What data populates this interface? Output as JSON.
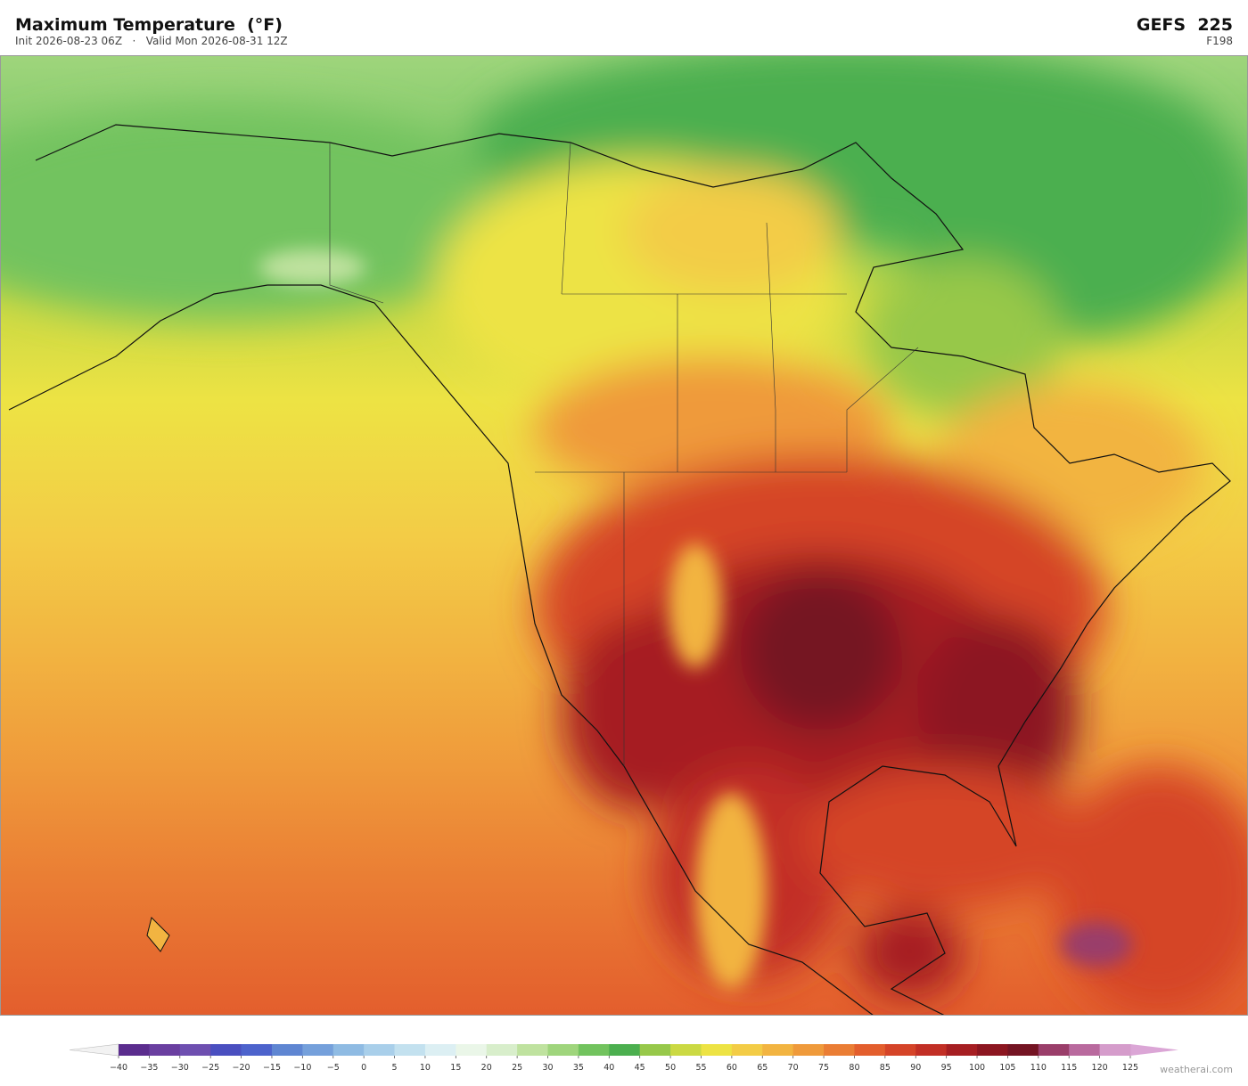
{
  "header": {
    "title": "Maximum Temperature  (°F)",
    "subtitle": "Init 2026-08-23 06Z   ·   Valid Mon 2026-08-31 12Z",
    "model": "GEFS  225",
    "forecast_hour": "F198"
  },
  "colorbar": {
    "ticks": [
      {
        "value": -40,
        "label": "−40"
      },
      {
        "value": -35,
        "label": "−35"
      },
      {
        "value": -30,
        "label": "−30"
      },
      {
        "value": -25,
        "label": "−25"
      },
      {
        "value": -20,
        "label": "−20"
      },
      {
        "value": -15,
        "label": "−15"
      },
      {
        "value": -10,
        "label": "−10"
      },
      {
        "value": -5,
        "label": "−5"
      },
      0,
      5,
      10,
      15,
      20,
      25,
      30,
      35,
      40,
      45,
      50,
      55,
      60,
      65,
      70,
      75,
      80,
      85,
      90,
      95,
      100,
      105,
      110,
      115,
      120,
      125
    ],
    "colors": [
      "#5b2d8e",
      "#6a3fa0",
      "#6e4fb0",
      "#4a4fc0",
      "#4d63cc",
      "#5f86d2",
      "#75a0db",
      "#8fbbe3",
      "#a9cfea",
      "#c3e1ef",
      "#dceff3",
      "#eaf6e8",
      "#d8eecb",
      "#bfe29f",
      "#9fd57c",
      "#72c35e",
      "#4caf4f",
      "#97c84a",
      "#cbd943",
      "#ede344",
      "#f3cc46",
      "#f2b441",
      "#ef9a3b",
      "#ea7d34",
      "#e35e2d",
      "#d54428",
      "#c22f25",
      "#a61e22",
      "#8c1620",
      "#741423",
      "#9a3e6a",
      "#b96a9e",
      "#d59ccb"
    ],
    "under_color": "#f2f2f2",
    "over_color": "#dba6d6"
  },
  "footer": {
    "credit": "weatherai.com"
  }
}
